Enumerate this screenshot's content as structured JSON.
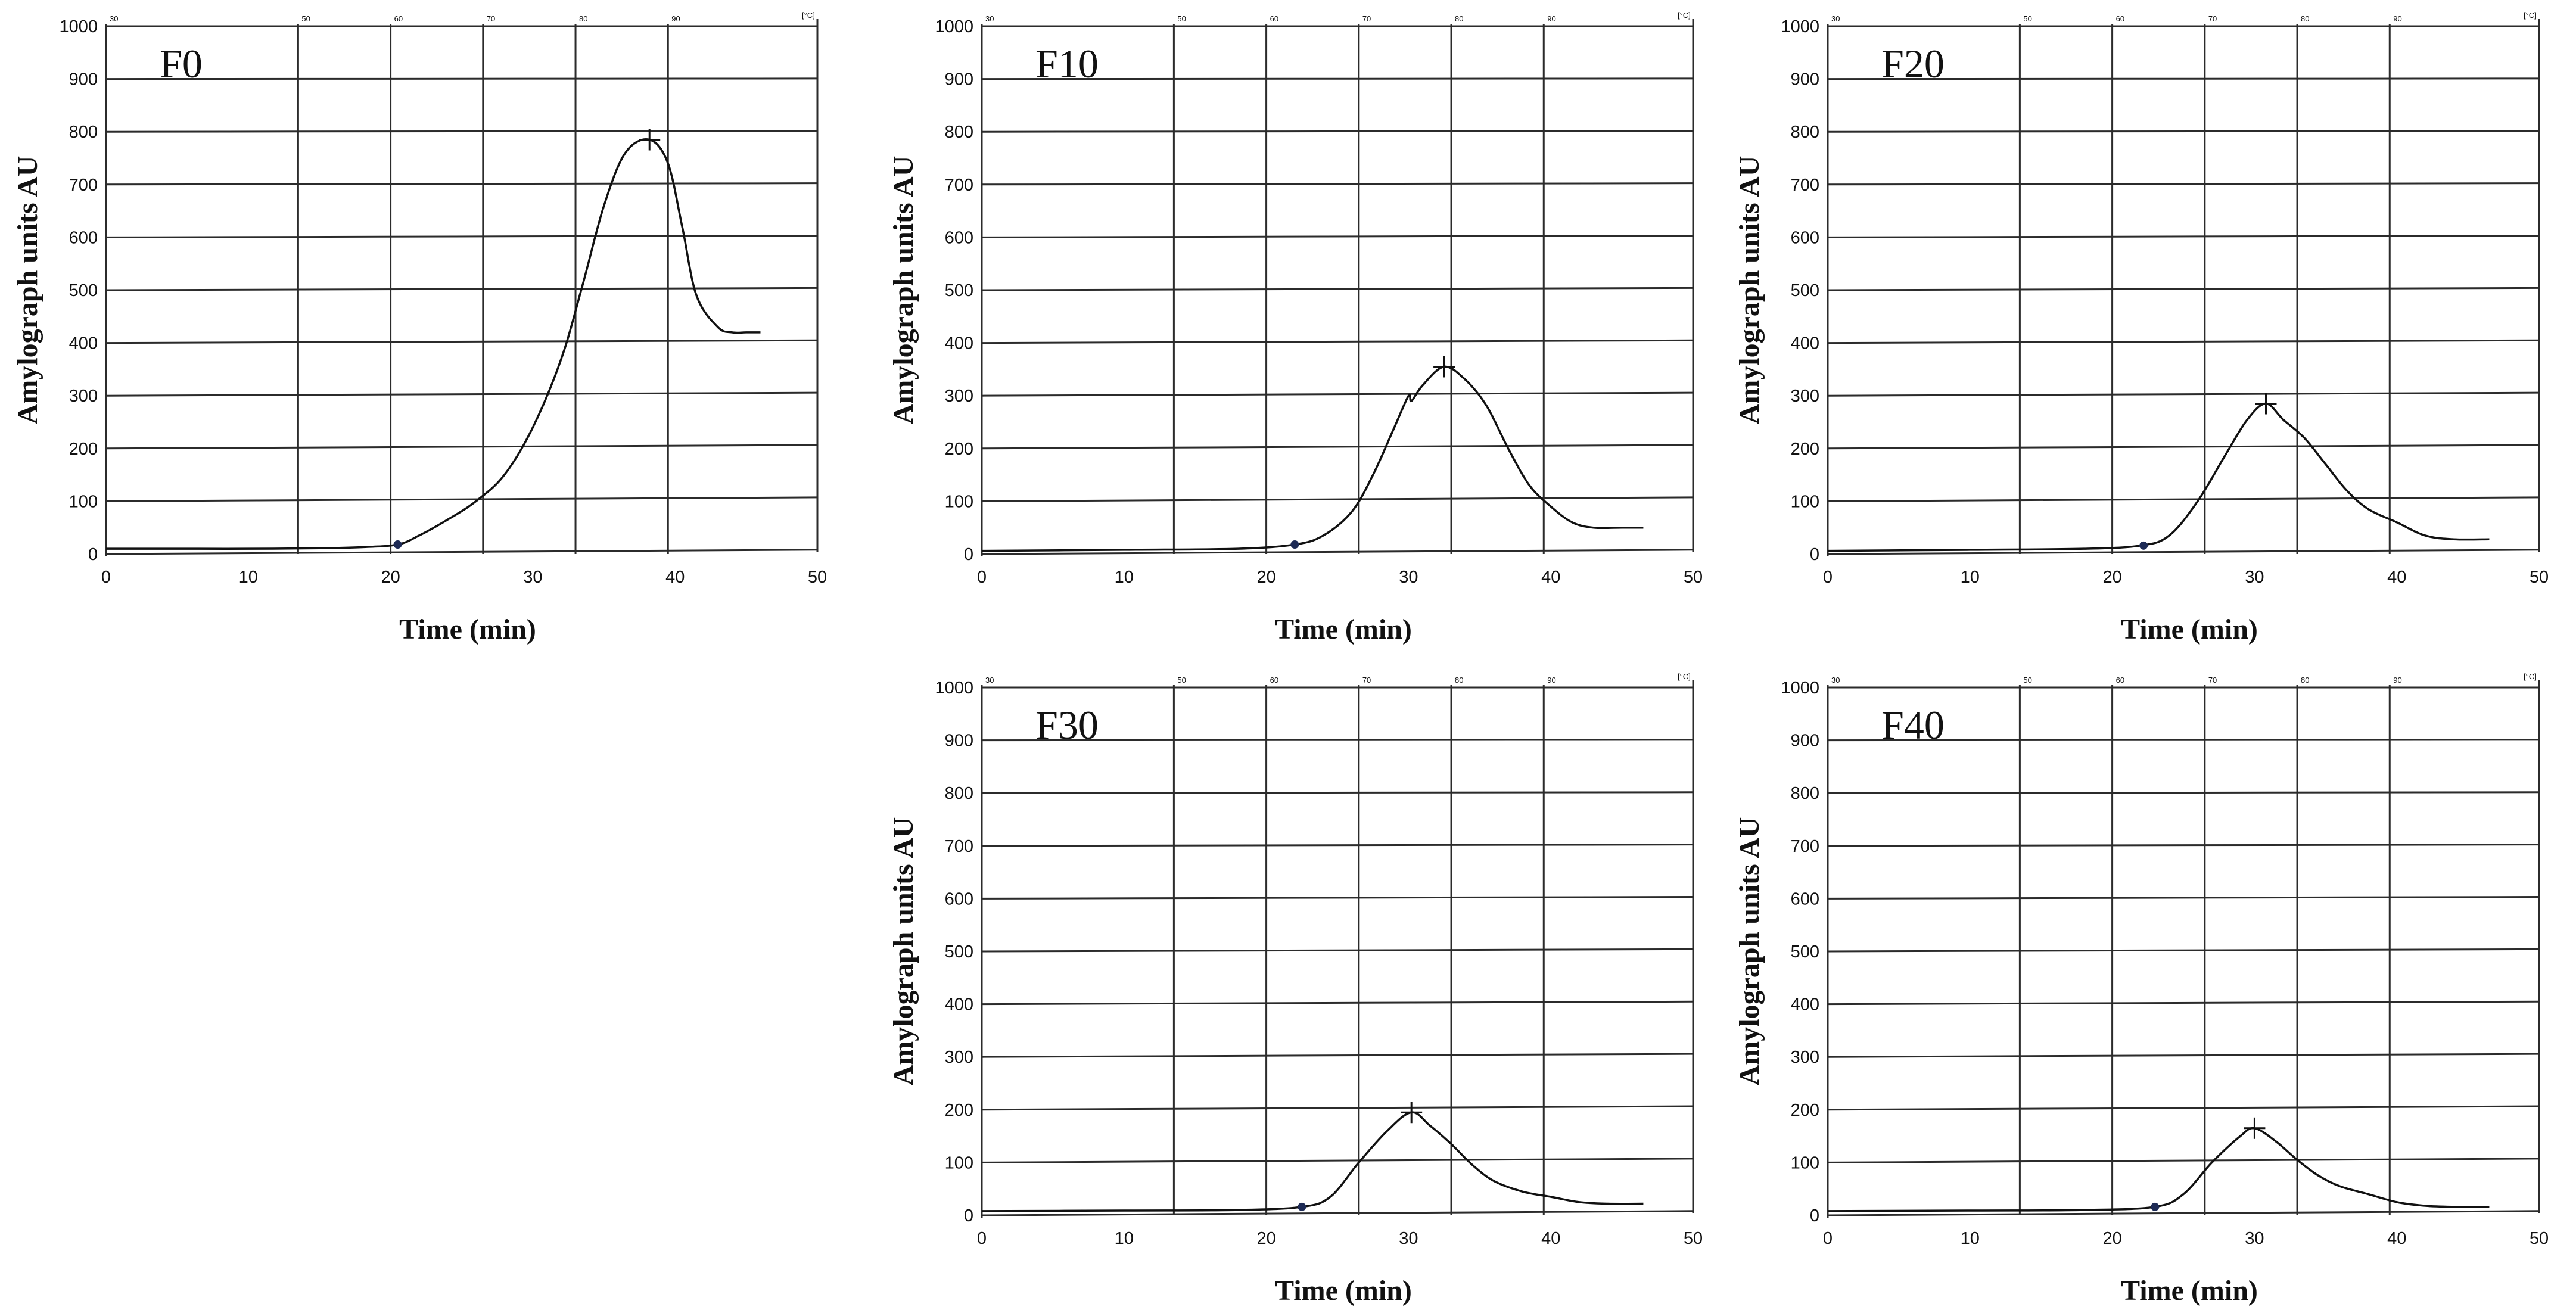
{
  "chart_data": [
    {
      "type": "line",
      "panel_label": "F0",
      "xlabel": "Time (min)",
      "ylabel": "Amylograph units AU",
      "xlim": [
        0,
        50
      ],
      "ylim": [
        0,
        1000
      ],
      "x_ticks": [
        "0",
        "10",
        "20",
        "30",
        "40",
        "50"
      ],
      "y_ticks": [
        "0",
        "100",
        "200",
        "300",
        "400",
        "500",
        "600",
        "700",
        "800",
        "900",
        "1000"
      ],
      "temperature_scale": {
        "labels": [
          "30",
          "50",
          "60",
          "70",
          "80",
          "90"
        ],
        "unit_label": "[°C]"
      },
      "series": [
        {
          "x": [
            0,
            5,
            10,
            15,
            18,
            20.5,
            22,
            24,
            26,
            28,
            30,
            32,
            33.5,
            35,
            36.5,
            38.2,
            39.5,
            40.5,
            41.5,
            43,
            44,
            45,
            46
          ],
          "y": [
            10,
            10,
            10,
            11,
            13,
            18,
            35,
            65,
            100,
            150,
            240,
            370,
            510,
            660,
            760,
            785,
            740,
            620,
            490,
            430,
            420,
            420,
            420
          ]
        }
      ],
      "peak": {
        "x": 38.2,
        "y": 785
      },
      "start_point": {
        "x": 20.5,
        "y": 18
      }
    },
    {
      "type": "line",
      "panel_label": "F10",
      "xlabel": "Time (min)",
      "ylabel": "Amylograph units AU",
      "xlim": [
        0,
        50
      ],
      "ylim": [
        0,
        1000
      ],
      "x_ticks": [
        "0",
        "10",
        "20",
        "30",
        "40",
        "50"
      ],
      "y_ticks": [
        "0",
        "100",
        "200",
        "300",
        "400",
        "500",
        "600",
        "700",
        "800",
        "900",
        "1000"
      ],
      "temperature_scale": {
        "labels": [
          "30",
          "50",
          "60",
          "70",
          "80",
          "90"
        ],
        "unit_label": "[°C]"
      },
      "series": [
        {
          "x": [
            0,
            10,
            18,
            22,
            24,
            26,
            27.5,
            29,
            30,
            30.2,
            31,
            32.5,
            34,
            35.5,
            37,
            38.5,
            40,
            41.5,
            43,
            45,
            46.5
          ],
          "y": [
            6,
            8,
            10,
            18,
            35,
            80,
            150,
            240,
            300,
            290,
            320,
            355,
            330,
            280,
            200,
            130,
            90,
            60,
            50,
            50,
            50
          ]
        }
      ],
      "peak": {
        "x": 32.5,
        "y": 355
      },
      "start_point": {
        "x": 22,
        "y": 18
      }
    },
    {
      "type": "line",
      "panel_label": "F20",
      "xlabel": "Time (min)",
      "ylabel": "Amylograph units AU",
      "xlim": [
        0,
        50
      ],
      "ylim": [
        0,
        1000
      ],
      "x_ticks": [
        "0",
        "10",
        "20",
        "30",
        "40",
        "50"
      ],
      "y_ticks": [
        "0",
        "100",
        "200",
        "300",
        "400",
        "500",
        "600",
        "700",
        "800",
        "900",
        "1000"
      ],
      "temperature_scale": {
        "labels": [
          "30",
          "50",
          "60",
          "70",
          "80",
          "90"
        ],
        "unit_label": "[°C]"
      },
      "series": [
        {
          "x": [
            0,
            10,
            18,
            22,
            24,
            26,
            28,
            29.5,
            30.8,
            32,
            33.5,
            35,
            36.5,
            38,
            40,
            42,
            44,
            46.5
          ],
          "y": [
            6,
            8,
            10,
            16,
            35,
            100,
            190,
            255,
            285,
            255,
            220,
            170,
            120,
            85,
            60,
            35,
            28,
            28
          ]
        }
      ],
      "peak": {
        "x": 30.8,
        "y": 285
      },
      "start_point": {
        "x": 22.2,
        "y": 16
      }
    },
    {
      "type": "line",
      "panel_label": "F30",
      "xlabel": "Time (min)",
      "ylabel": "Amylograph units AU",
      "xlim": [
        0,
        50
      ],
      "ylim": [
        0,
        1000
      ],
      "x_ticks": [
        "0",
        "10",
        "20",
        "30",
        "40",
        "50"
      ],
      "y_ticks": [
        "0",
        "100",
        "200",
        "300",
        "400",
        "500",
        "600",
        "700",
        "800",
        "900",
        "1000"
      ],
      "temperature_scale": {
        "labels": [
          "30",
          "50",
          "60",
          "70",
          "80",
          "90"
        ],
        "unit_label": "[°C]"
      },
      "series": [
        {
          "x": [
            0,
            10,
            18,
            22.5,
            24.5,
            26.5,
            28.5,
            30.2,
            31.5,
            33,
            34.5,
            36,
            38,
            40,
            42,
            44,
            46.5
          ],
          "y": [
            8,
            9,
            10,
            16,
            35,
            100,
            160,
            195,
            170,
            135,
            95,
            65,
            45,
            35,
            25,
            22,
            22
          ]
        }
      ],
      "peak": {
        "x": 30.2,
        "y": 195
      },
      "start_point": {
        "x": 22.5,
        "y": 16
      }
    },
    {
      "type": "line",
      "panel_label": "F40",
      "xlabel": "Time (min)",
      "ylabel": "Amylograph units AU",
      "xlim": [
        0,
        50
      ],
      "ylim": [
        0,
        1000
      ],
      "x_ticks": [
        "0",
        "10",
        "20",
        "30",
        "40",
        "50"
      ],
      "y_ticks": [
        "0",
        "100",
        "200",
        "300",
        "400",
        "500",
        "600",
        "700",
        "800",
        "900",
        "1000"
      ],
      "temperature_scale": {
        "labels": [
          "30",
          "50",
          "60",
          "70",
          "80",
          "90"
        ],
        "unit_label": "[°C]"
      },
      "series": [
        {
          "x": [
            0,
            10,
            18,
            23,
            25,
            27,
            29,
            30,
            31.5,
            33,
            34.5,
            36,
            38,
            40,
            42,
            44,
            46.5
          ],
          "y": [
            8,
            9,
            10,
            16,
            40,
            100,
            150,
            165,
            140,
            105,
            75,
            55,
            40,
            25,
            18,
            16,
            16
          ]
        }
      ],
      "peak": {
        "x": 30,
        "y": 165
      },
      "start_point": {
        "x": 23,
        "y": 16
      }
    }
  ]
}
